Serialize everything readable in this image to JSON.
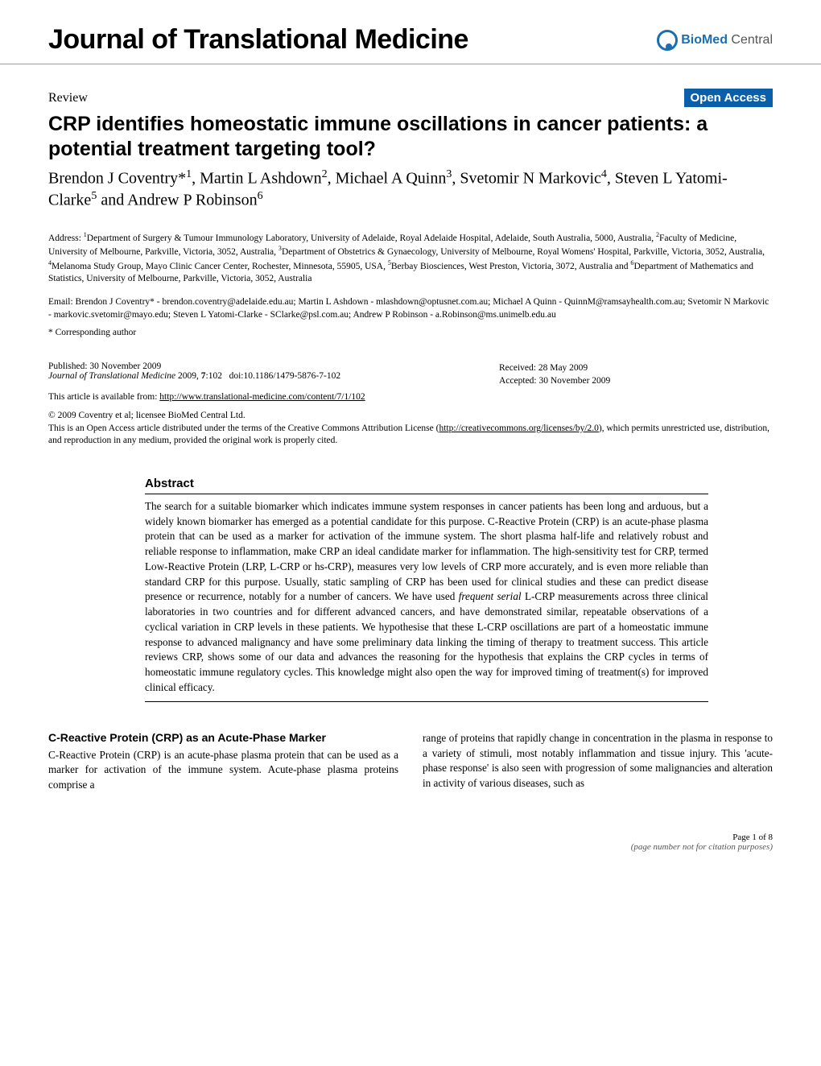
{
  "journal": {
    "title": "Journal of Translational Medicine",
    "publisher_bold": "BioMed",
    "publisher_light": " Central"
  },
  "meta": {
    "type": "Review",
    "open_access": "Open Access"
  },
  "article": {
    "title": "CRP identifies homeostatic immune oscillations in cancer patients: a potential treatment targeting tool?",
    "authors_html": "Brendon J Coventry*<sup>1</sup>, Martin L Ashdown<sup>2</sup>, Michael A Quinn<sup>3</sup>, Svetomir N Markovic<sup>4</sup>, Steven L Yatomi-Clarke<sup>5</sup> and Andrew P Robinson<sup>6</sup>",
    "addresses_html": "Address: <sup>1</sup>Department of Surgery & Tumour Immunology Laboratory, University of Adelaide, Royal Adelaide Hospital, Adelaide, South Australia, 5000, Australia, <sup>2</sup>Faculty of Medicine, University of Melbourne, Parkville, Victoria, 3052, Australia, <sup>3</sup>Department of Obstetrics & Gynaecology, University of Melbourne, Royal Womens' Hospital, Parkville, Victoria, 3052, Australia, <sup>4</sup>Melanoma Study Group, Mayo Clinic Cancer Center, Rochester, Minnesota, 55905, USA, <sup>5</sup>Berbay Biosciences, West Preston, Victoria, 3072, Australia and <sup>6</sup>Department of Mathematics and Statistics, University of Melbourne, Parkville, Victoria, 3052, Australia",
    "emails": "Email: Brendon J Coventry* - brendon.coventry@adelaide.edu.au; Martin L Ashdown - mlashdown@optusnet.com.au; Michael A Quinn - QuinnM@ramsayhealth.com.au; Svetomir N Markovic - markovic.svetomir@mayo.edu; Steven L Yatomi-Clarke - SClarke@psl.com.au; Andrew P Robinson - a.Robinson@ms.unimelb.edu.au",
    "corresponding": "* Corresponding author"
  },
  "pubinfo": {
    "published": "Published: 30 November 2009",
    "citation_html": "<em>Journal of Translational Medicine</em> 2009, <strong>7</strong>:102&nbsp;&nbsp;&nbsp;doi:10.1186/1479-5876-7-102",
    "received": "Received: 28 May 2009",
    "accepted": "Accepted: 30 November 2009",
    "available_label": "This article is available from: ",
    "available_url": "http://www.translational-medicine.com/content/7/1/102",
    "copyright_line1": "© 2009 Coventry et al; licensee BioMed Central Ltd.",
    "copyright_line2_pre": "This is an Open Access article distributed under the terms of the Creative Commons Attribution License (",
    "cc_url": "http://creativecommons.org/licenses/by/2.0",
    "copyright_line2_post": "), which permits unrestricted use, distribution, and reproduction in any medium, provided the original work is properly cited."
  },
  "abstract": {
    "heading": "Abstract",
    "text_html": "The search for a suitable biomarker which indicates immune system responses in cancer patients has been long and arduous, but a widely known biomarker has emerged as a potential candidate for this purpose. C-Reactive Protein (CRP) is an acute-phase plasma protein that can be used as a marker for activation of the immune system. The short plasma half-life and relatively robust and reliable response to inflammation, make CRP an ideal candidate marker for inflammation. The high-sensitivity test for CRP, termed Low-Reactive Protein (LRP, L-CRP or hs-CRP), measures very low levels of CRP more accurately, and is even more reliable than standard CRP for this purpose. Usually, static sampling of CRP has been used for clinical studies and these can predict disease presence or recurrence, notably for a number of cancers. We have used <em>frequent serial</em> L-CRP measurements across three clinical laboratories in two countries and for different advanced cancers, and have demonstrated similar, repeatable observations of a cyclical variation in CRP levels in these patients. We hypothesise that these L-CRP oscillations are part of a homeostatic immune response to advanced malignancy and have some preliminary data linking the timing of therapy to treatment success. This article reviews CRP, shows some of our data and advances the reasoning for the hypothesis that explains the CRP cycles in terms of homeostatic immune regulatory cycles. This knowledge might also open the way for improved timing of treatment(s) for improved clinical efficacy."
  },
  "body": {
    "section_heading": "C-Reactive Protein (CRP) as an Acute-Phase Marker",
    "col1_text": "C-Reactive Protein (CRP) is an acute-phase plasma protein that can be used as a marker for activation of the immune system. Acute-phase plasma proteins comprise a",
    "col2_text": "range of proteins that rapidly change in concentration in the plasma in response to a variety of stimuli, most notably inflammation and tissue injury. This 'acute-phase response' is also seen with progression of some malignancies and alteration in activity of various diseases, such as"
  },
  "footer": {
    "page": "Page 1 of 8",
    "note": "(page number not for citation purposes)"
  },
  "colors": {
    "brand_blue": "#0b5ea8",
    "logo_blue": "#1a6faf",
    "text_black": "#000000",
    "muted": "#555555",
    "rule": "#999999",
    "background": "#ffffff"
  },
  "typography": {
    "journal_title_fontsize": 34,
    "article_title_fontsize": 25,
    "authors_fontsize": 20,
    "body_fontsize": 13.2,
    "small_fontsize": 11.5
  }
}
